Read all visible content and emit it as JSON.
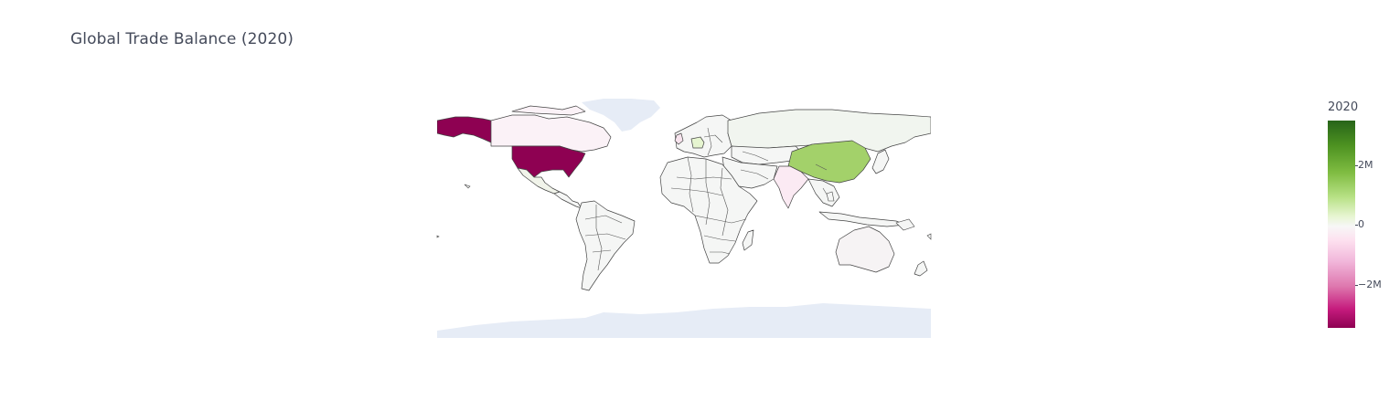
{
  "title": "Global Trade Balance (2020)",
  "colorbar": {
    "title": "2020",
    "ticks": [
      {
        "label": "2M",
        "value": 2000000
      },
      {
        "label": "0",
        "value": 0
      },
      {
        "label": "−2M",
        "value": -2000000
      }
    ],
    "range": [
      -3400000,
      3400000
    ],
    "colorscale": [
      "#276419",
      "#4d9221",
      "#7fbc41",
      "#b8e186",
      "#e6f5d0",
      "#f7f7f7",
      "#fde0ef",
      "#f1b6da",
      "#de77ae",
      "#c51b7d",
      "#8e0152"
    ]
  },
  "colors": {
    "land_default": "#f5f6f5",
    "antarctica": "#e6ecf6",
    "greenland": "#e6ecf6",
    "border": "#444444",
    "usa": "#8e0152",
    "china": "#a3d16a",
    "canada": "#fbf2f7",
    "germany": "#e6f5d0",
    "india": "#fbeaf3",
    "russia": "#f1f5ef"
  }
}
